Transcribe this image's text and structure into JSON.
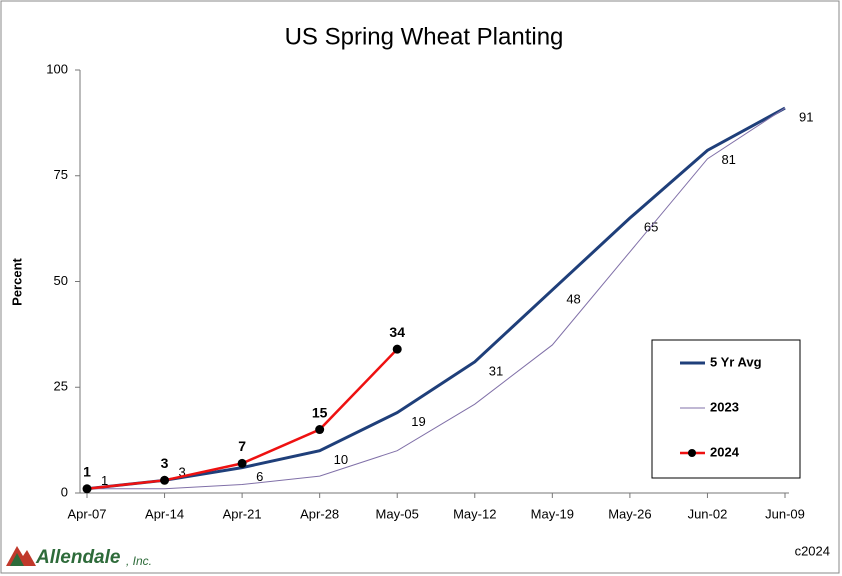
{
  "chart_data": {
    "type": "line",
    "title": "US Spring Wheat Planting",
    "ylabel": "Percent",
    "categories": [
      "Apr-07",
      "Apr-14",
      "Apr-21",
      "Apr-28",
      "May-05",
      "May-12",
      "May-19",
      "May-26",
      "Jun-02",
      "Jun-09"
    ],
    "ylim": [
      0,
      100
    ],
    "yticks": [
      0,
      25,
      50,
      75,
      100
    ],
    "legend": "lower right",
    "series": [
      {
        "name": "5 Yr Avg",
        "color": "#1f3f7a",
        "values": [
          1,
          3,
          6,
          10,
          19,
          31,
          48,
          65,
          81,
          91
        ]
      },
      {
        "name": "2023",
        "color": "#8070a8",
        "values": [
          1,
          1,
          2,
          4,
          10,
          21,
          35,
          57,
          79,
          91
        ]
      },
      {
        "name": "2024",
        "color": "#ee1111",
        "values": [
          1,
          3,
          7,
          15,
          34,
          null,
          null,
          null,
          null,
          null
        ]
      }
    ],
    "logo_name": "Allendale",
    "logo_suffix": ", Inc.",
    "footer": "c2024"
  }
}
